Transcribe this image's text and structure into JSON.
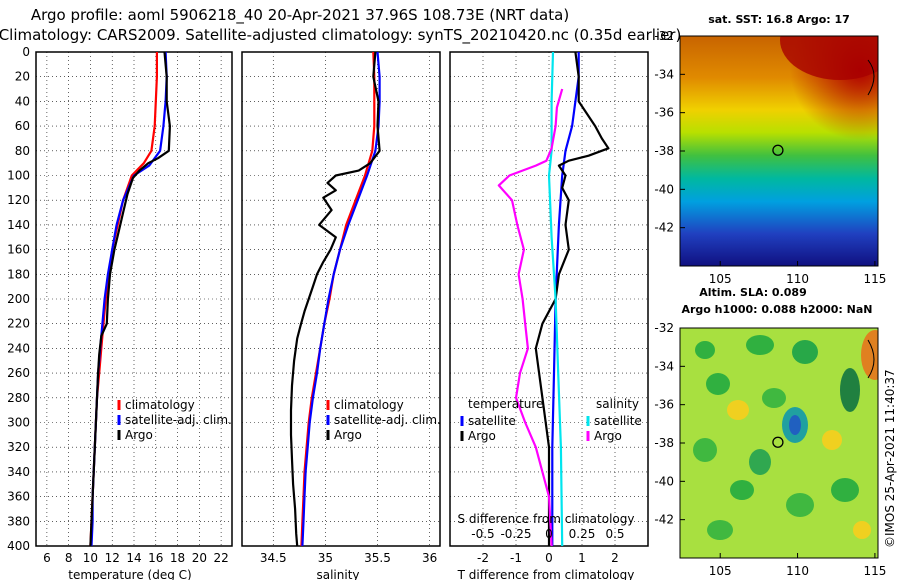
{
  "title_line1": "Argo profile: aoml 5906218_40 20-Apr-2021 37.96S 108.73E (NRT data)",
  "title_line2": "Climatology: CARS2009. Satellite-adjusted climatology: synTS_20210420.nc (0.35d earlier)",
  "side_credit": "©IMOS 25-Apr-2021 11:40:37",
  "colors": {
    "climatology": "#ff0000",
    "satellite": "#0000ff",
    "argo": "#000000",
    "salinity_sat": "#00e5ee",
    "salinity_argo": "#ff00ff"
  },
  "chart_data": [
    {
      "type": "line",
      "id": "temperature",
      "xlabel": "temperature (deg C)",
      "ylabel": "",
      "xlim": [
        5,
        23
      ],
      "ylim": [
        400,
        0
      ],
      "x_ticks": [
        "6",
        "8",
        "10",
        "12",
        "14",
        "16",
        "18",
        "20",
        "22"
      ],
      "x_tick_values": [
        6,
        8,
        10,
        12,
        14,
        16,
        18,
        20,
        22
      ],
      "y_ticks": [
        "0",
        "20",
        "40",
        "60",
        "80",
        "100",
        "120",
        "140",
        "160",
        "180",
        "200",
        "220",
        "240",
        "260",
        "280",
        "300",
        "320",
        "340",
        "360",
        "380",
        "400"
      ],
      "y_tick_values": [
        0,
        20,
        40,
        60,
        80,
        100,
        120,
        140,
        160,
        180,
        200,
        220,
        240,
        260,
        280,
        300,
        320,
        340,
        360,
        380,
        400
      ],
      "legend": [
        "climatology",
        "satellite-adj. clim.",
        "Argo"
      ],
      "series": [
        {
          "name": "climatology",
          "color": "#ff0000",
          "points": [
            [
              16.1,
              0
            ],
            [
              16.1,
              20
            ],
            [
              16.0,
              40
            ],
            [
              15.9,
              60
            ],
            [
              15.6,
              80
            ],
            [
              14.9,
              90
            ],
            [
              13.8,
              100
            ],
            [
              13.0,
              120
            ],
            [
              12.5,
              140
            ],
            [
              12.0,
              160
            ],
            [
              11.7,
              180
            ],
            [
              11.4,
              200
            ],
            [
              11.2,
              220
            ],
            [
              11.0,
              240
            ],
            [
              10.8,
              260
            ],
            [
              10.6,
              280
            ],
            [
              10.5,
              300
            ],
            [
              10.4,
              320
            ],
            [
              10.3,
              340
            ],
            [
              10.2,
              360
            ],
            [
              10.1,
              380
            ],
            [
              10.0,
              400
            ]
          ]
        },
        {
          "name": "satellite-adj. clim.",
          "color": "#0000ff",
          "points": [
            [
              16.9,
              0
            ],
            [
              17.0,
              20
            ],
            [
              16.9,
              40
            ],
            [
              16.7,
              60
            ],
            [
              16.4,
              80
            ],
            [
              15.4,
              92
            ],
            [
              14.0,
              100
            ],
            [
              13.0,
              120
            ],
            [
              12.4,
              140
            ],
            [
              12.0,
              160
            ],
            [
              11.6,
              180
            ],
            [
              11.3,
              200
            ],
            [
              11.1,
              220
            ],
            [
              10.9,
              240
            ],
            [
              10.7,
              260
            ],
            [
              10.6,
              280
            ],
            [
              10.5,
              300
            ],
            [
              10.4,
              320
            ],
            [
              10.3,
              340
            ],
            [
              10.2,
              360
            ],
            [
              10.2,
              380
            ],
            [
              10.1,
              400
            ]
          ]
        },
        {
          "name": "Argo",
          "color": "#000000",
          "points": [
            [
              16.8,
              0
            ],
            [
              17.0,
              20
            ],
            [
              17.0,
              40
            ],
            [
              17.3,
              60
            ],
            [
              17.2,
              80
            ],
            [
              16.2,
              86
            ],
            [
              15.3,
              90
            ],
            [
              14.5,
              96
            ],
            [
              13.9,
              102
            ],
            [
              13.4,
              115
            ],
            [
              13.0,
              130
            ],
            [
              12.6,
              145
            ],
            [
              12.2,
              160
            ],
            [
              11.8,
              180
            ],
            [
              11.6,
              200
            ],
            [
              11.5,
              220
            ],
            [
              11.0,
              230
            ],
            [
              10.8,
              245
            ],
            [
              10.7,
              260
            ],
            [
              10.6,
              280
            ],
            [
              10.5,
              300
            ],
            [
              10.4,
              320
            ],
            [
              10.3,
              340
            ],
            [
              10.2,
              360
            ],
            [
              10.1,
              380
            ],
            [
              10.0,
              400
            ]
          ]
        }
      ]
    },
    {
      "type": "line",
      "id": "salinity",
      "xlabel": "salinity",
      "xlim": [
        34.2,
        36.1
      ],
      "ylim": [
        400,
        0
      ],
      "x_ticks": [
        "34.5",
        "35",
        "35.5",
        "36"
      ],
      "x_tick_values": [
        34.5,
        35,
        35.5,
        36
      ],
      "legend": [
        "climatology",
        "satellite-adj. clim.",
        "Argo"
      ],
      "series": [
        {
          "name": "climatology",
          "color": "#ff0000",
          "points": [
            [
              35.46,
              0
            ],
            [
              35.47,
              20
            ],
            [
              35.47,
              40
            ],
            [
              35.47,
              60
            ],
            [
              35.45,
              80
            ],
            [
              35.38,
              100
            ],
            [
              35.29,
              120
            ],
            [
              35.2,
              140
            ],
            [
              35.14,
              160
            ],
            [
              35.08,
              180
            ],
            [
              35.04,
              200
            ],
            [
              34.99,
              220
            ],
            [
              34.95,
              240
            ],
            [
              34.91,
              260
            ],
            [
              34.87,
              280
            ],
            [
              34.84,
              300
            ],
            [
              34.82,
              320
            ],
            [
              34.8,
              340
            ],
            [
              34.79,
              360
            ],
            [
              34.78,
              380
            ],
            [
              34.77,
              400
            ]
          ]
        },
        {
          "name": "satellite-adj. clim.",
          "color": "#0000ff",
          "points": [
            [
              35.5,
              0
            ],
            [
              35.52,
              20
            ],
            [
              35.52,
              40
            ],
            [
              35.51,
              60
            ],
            [
              35.48,
              80
            ],
            [
              35.4,
              100
            ],
            [
              35.31,
              120
            ],
            [
              35.22,
              140
            ],
            [
              35.14,
              160
            ],
            [
              35.08,
              180
            ],
            [
              35.03,
              200
            ],
            [
              34.99,
              220
            ],
            [
              34.95,
              240
            ],
            [
              34.92,
              260
            ],
            [
              34.88,
              280
            ],
            [
              34.85,
              300
            ],
            [
              34.83,
              320
            ],
            [
              34.81,
              340
            ],
            [
              34.8,
              360
            ],
            [
              34.79,
              380
            ],
            [
              34.78,
              400
            ]
          ]
        },
        {
          "name": "Argo",
          "color": "#000000",
          "points": [
            [
              35.48,
              0
            ],
            [
              35.46,
              20
            ],
            [
              35.51,
              40
            ],
            [
              35.5,
              60
            ],
            [
              35.52,
              80
            ],
            [
              35.43,
              90
            ],
            [
              35.32,
              96
            ],
            [
              35.1,
              100
            ],
            [
              35.02,
              106
            ],
            [
              35.1,
              112
            ],
            [
              34.98,
              118
            ],
            [
              35.06,
              128
            ],
            [
              34.94,
              140
            ],
            [
              35.1,
              150
            ],
            [
              35.05,
              160
            ],
            [
              34.98,
              170
            ],
            [
              34.92,
              180
            ],
            [
              34.88,
              190
            ],
            [
              34.84,
              200
            ],
            [
              34.8,
              210
            ],
            [
              34.76,
              222
            ],
            [
              34.73,
              232
            ],
            [
              34.7,
              250
            ],
            [
              34.68,
              270
            ],
            [
              34.67,
              290
            ],
            [
              34.67,
              310
            ],
            [
              34.68,
              330
            ],
            [
              34.69,
              350
            ],
            [
              34.71,
              370
            ],
            [
              34.72,
              390
            ],
            [
              34.73,
              400
            ]
          ]
        }
      ]
    },
    {
      "type": "line",
      "id": "differences",
      "xlabel": "T difference from climatology",
      "top_xlabel": "S difference from climatology",
      "xlim": [
        -3,
        3
      ],
      "ylim": [
        400,
        0
      ],
      "x_ticks": [
        "-2",
        "-1",
        "0",
        "1",
        "2"
      ],
      "x_tick_values": [
        -2,
        -1,
        0,
        1,
        2
      ],
      "top_ticks": [
        "-0.5",
        "-0.25",
        "0",
        "0.25",
        "0.5"
      ],
      "legend": {
        "temperature_heading": "temperature",
        "salinity_heading": "salinity",
        "temperature_items": [
          "satellite",
          "Argo"
        ],
        "salinity_items": [
          "satellite",
          "Argo"
        ]
      },
      "series": [
        {
          "name": "temperature satellite",
          "color": "#0000ff",
          "points": [
            [
              0.9,
              0
            ],
            [
              0.9,
              20
            ],
            [
              0.8,
              40
            ],
            [
              0.7,
              60
            ],
            [
              0.5,
              80
            ],
            [
              0.4,
              100
            ],
            [
              0.3,
              140
            ],
            [
              0.2,
              200
            ],
            [
              0.15,
              260
            ],
            [
              0.1,
              320
            ],
            [
              0.1,
              400
            ]
          ]
        },
        {
          "name": "temperature Argo",
          "color": "#000000",
          "points": [
            [
              0.8,
              0
            ],
            [
              0.9,
              20
            ],
            [
              0.9,
              40
            ],
            [
              1.4,
              60
            ],
            [
              1.6,
              70
            ],
            [
              1.8,
              78
            ],
            [
              1.2,
              84
            ],
            [
              0.6,
              88
            ],
            [
              0.3,
              92
            ],
            [
              0.5,
              100
            ],
            [
              0.4,
              110
            ],
            [
              0.6,
              120
            ],
            [
              0.5,
              140
            ],
            [
              0.6,
              160
            ],
            [
              0.3,
              180
            ],
            [
              0.2,
              200
            ],
            [
              -0.2,
              220
            ],
            [
              -0.4,
              240
            ],
            [
              -0.3,
              260
            ],
            [
              -0.2,
              280
            ],
            [
              -0.1,
              300
            ],
            [
              0.0,
              320
            ],
            [
              0.0,
              360
            ],
            [
              0.0,
              400
            ]
          ]
        },
        {
          "name": "salinity satellite",
          "color": "#00e5ee",
          "points": [
            [
              0.03,
              0
            ],
            [
              0.02,
              40
            ],
            [
              0.02,
              80
            ],
            [
              0.0,
              100
            ],
            [
              0.02,
              150
            ],
            [
              0.05,
              200
            ],
            [
              0.07,
              260
            ],
            [
              0.09,
              320
            ],
            [
              0.1,
              400
            ]
          ]
        },
        {
          "name": "salinity Argo",
          "color": "#ff00ff",
          "points": [
            [
              0.1,
              30
            ],
            [
              0.06,
              45
            ],
            [
              0.05,
              60
            ],
            [
              0.02,
              78
            ],
            [
              -0.02,
              88
            ],
            [
              -0.1,
              92
            ],
            [
              -0.3,
              100
            ],
            [
              -0.38,
              108
            ],
            [
              -0.33,
              114
            ],
            [
              -0.28,
              120
            ],
            [
              -0.24,
              140
            ],
            [
              -0.19,
              160
            ],
            [
              -0.23,
              180
            ],
            [
              -0.2,
              200
            ],
            [
              -0.18,
              220
            ],
            [
              -0.16,
              240
            ],
            [
              -0.22,
              260
            ],
            [
              -0.25,
              280
            ],
            [
              -0.18,
              300
            ],
            [
              -0.1,
              320
            ],
            [
              -0.05,
              340
            ],
            [
              0.0,
              360
            ],
            [
              0.02,
              400
            ]
          ]
        }
      ]
    },
    {
      "type": "heatmap",
      "id": "sst_map",
      "title": "sat. SST: 16.8 Argo: 17",
      "x_ticks": [
        "105",
        "110",
        "115"
      ],
      "x_tick_values": [
        105,
        110,
        115
      ],
      "y_ticks": [
        "-32",
        "-34",
        "-36",
        "-38",
        "-40",
        "-42"
      ],
      "y_tick_values": [
        -32,
        -34,
        -36,
        -38,
        -40,
        -42
      ],
      "xlim": [
        102.4,
        115.2
      ],
      "ylim": [
        -44,
        -32
      ],
      "argo_position": [
        108.73,
        -37.96
      ]
    },
    {
      "type": "heatmap",
      "id": "sla_map",
      "title": "Altim. SLA: 0.089",
      "subtitle": "Argo h1000: 0.088 h2000: NaN",
      "x_ticks": [
        "105",
        "110",
        "115"
      ],
      "x_tick_values": [
        105,
        110,
        115
      ],
      "y_ticks": [
        "-32",
        "-34",
        "-36",
        "-38",
        "-40",
        "-42"
      ],
      "y_tick_values": [
        -32,
        -34,
        -36,
        -38,
        -40,
        -42
      ],
      "xlim": [
        102.4,
        115.2
      ],
      "ylim": [
        -44,
        -32
      ],
      "argo_position": [
        108.73,
        -37.96
      ]
    }
  ]
}
